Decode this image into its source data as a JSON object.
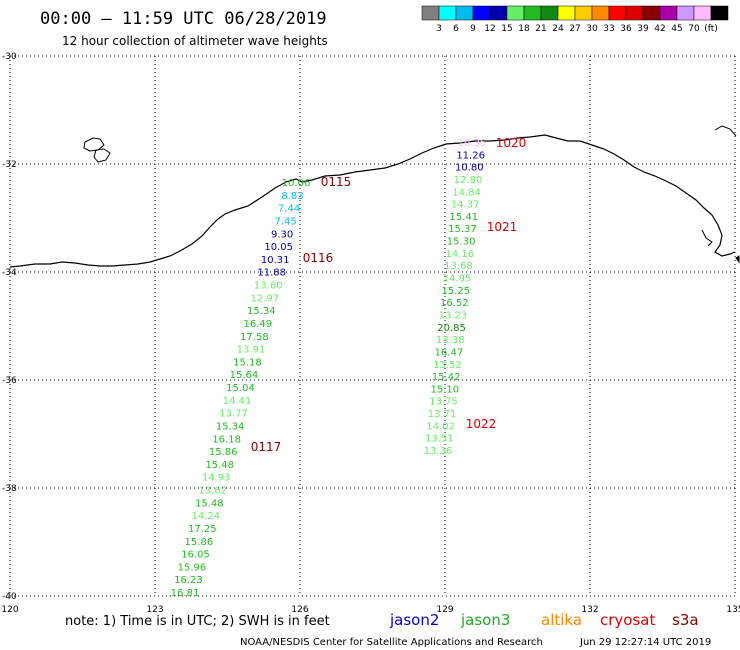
{
  "header": {
    "title": "00:00 – 11:59 UTC 06/28/2019",
    "subtitle": "12 hour collection of altimeter wave heights"
  },
  "legend": {
    "colors": [
      "#808080",
      "#00ffff",
      "#00bbee",
      "#0000ff",
      "#0000aa",
      "#66ee66",
      "#22bb22",
      "#118811",
      "#ffff00",
      "#ffcc00",
      "#ff8800",
      "#ff0000",
      "#dd0000",
      "#880000",
      "#aa00aa",
      "#cc99ff",
      "#ffbbff",
      "#000000"
    ],
    "labels": [
      "3",
      "6",
      "9",
      "12",
      "15",
      "18",
      "21",
      "24",
      "27",
      "30",
      "33",
      "36",
      "39",
      "42",
      "45",
      "70",
      "(ft)"
    ]
  },
  "axes": {
    "lon_ticks": [
      120,
      123,
      126,
      129,
      132,
      135
    ],
    "lat_ticks": [
      -30,
      -32,
      -34,
      -36,
      -38,
      -40
    ],
    "lon_range": [
      120,
      135
    ],
    "lat_range": [
      -40,
      -30
    ]
  },
  "track1": {
    "values": [
      "10.06",
      "8.83",
      "7.44",
      "7.45",
      "9.30",
      "10.05",
      "10.31",
      "11.88",
      "13.60",
      "12.97",
      "15.34",
      "16.49",
      "17.58",
      "13.91",
      "15.18",
      "15.64",
      "15.04",
      "14.41",
      "13.77",
      "15.34",
      "16.18",
      "15.86",
      "15.48",
      "14.93",
      "13.62",
      "15.48",
      "14.24",
      "17.25",
      "15.86",
      "16.05",
      "15.96",
      "16.23",
      "16.81"
    ],
    "colors": [
      "#22bb22",
      "#00bbee",
      "#00bbee",
      "#00bbee",
      "#0000aa",
      "#0000aa",
      "#0000aa",
      "#0000aa",
      "#66ee66",
      "#66ee66",
      "#22bb22",
      "#22bb22",
      "#22bb22",
      "#66ee66",
      "#22bb22",
      "#22bb22",
      "#22bb22",
      "#66ee66",
      "#66ee66",
      "#22bb22",
      "#22bb22",
      "#22bb22",
      "#22bb22",
      "#66ee66",
      "#66ee66",
      "#22bb22",
      "#66ee66",
      "#22bb22",
      "#22bb22",
      "#22bb22",
      "#22bb22",
      "#22bb22",
      "#22bb22"
    ]
  },
  "track2": {
    "values": [
      "10.35",
      "11.26",
      "10.80",
      "12.80",
      "14.84",
      "14.37",
      "15.41",
      "15.37",
      "15.30",
      "14.16",
      "13.68",
      "14.95",
      "15.25",
      "16.52",
      "13.23",
      "20.85",
      "13.38",
      "16.47",
      "13.52",
      "15.42",
      "15.10",
      "13.75",
      "13.71",
      "14.02",
      "13.51",
      "13.36"
    ],
    "colors": [
      "#ffbbff",
      "#0000aa",
      "#0000aa",
      "#66ee66",
      "#66ee66",
      "#66ee66",
      "#22bb22",
      "#22bb22",
      "#22bb22",
      "#66ee66",
      "#66ee66",
      "#66ee66",
      "#22bb22",
      "#22bb22",
      "#66ee66",
      "#118811",
      "#66ee66",
      "#22bb22",
      "#66ee66",
      "#22bb22",
      "#22bb22",
      "#66ee66",
      "#66ee66",
      "#66ee66",
      "#66ee66",
      "#66ee66"
    ]
  },
  "times": [
    {
      "label": "0115",
      "color": "#880000"
    },
    {
      "label": "0116",
      "color": "#880000"
    },
    {
      "label": "0117",
      "color": "#880000"
    },
    {
      "label": "1020",
      "color": "#dd0000"
    },
    {
      "label": "1021",
      "color": "#dd0000"
    },
    {
      "label": "1022",
      "color": "#dd0000"
    }
  ],
  "footer": {
    "note": "note: 1) Time is in UTC; 2) SWH is in feet",
    "satellites": [
      {
        "name": "jason2",
        "color": "#0000cc"
      },
      {
        "name": "jason3",
        "color": "#22aa22"
      },
      {
        "name": "altika",
        "color": "#ff8800"
      },
      {
        "name": "cryosat",
        "color": "#dd0000"
      },
      {
        "name": "s3a",
        "color": "#880000"
      }
    ],
    "credit": "NOAA/NESDIS Center for Satellite Applications and Research",
    "timestamp": "Jun 29 12:27:14 UTC 2019"
  }
}
